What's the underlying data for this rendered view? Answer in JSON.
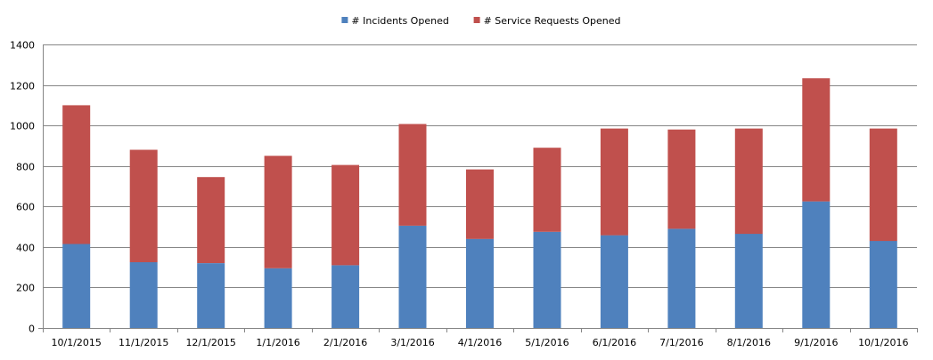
{
  "chart_data": {
    "type": "bar",
    "stacked": true,
    "categories": [
      "10/1/2015",
      "11/1/2015",
      "12/1/2015",
      "1/1/2016",
      "2/1/2016",
      "3/1/2016",
      "4/1/2016",
      "5/1/2016",
      "6/1/2016",
      "7/1/2016",
      "8/1/2016",
      "9/1/2016",
      "10/1/2016"
    ],
    "series": [
      {
        "name": "# Incidents Opened",
        "color": "#4f81bd",
        "values": [
          415,
          325,
          320,
          295,
          310,
          505,
          440,
          475,
          458,
          490,
          465,
          625,
          430
        ]
      },
      {
        "name": "# Service Requests Opened",
        "color": "#c0504d",
        "values": [
          685,
          555,
          425,
          555,
          495,
          502,
          343,
          415,
          527,
          490,
          520,
          608,
          555
        ]
      }
    ],
    "title": "",
    "xlabel": "",
    "ylabel": "",
    "ylim": [
      0,
      1400
    ],
    "yticks": [
      "0",
      "200",
      "400",
      "600",
      "800",
      "1000",
      "1200",
      "1400"
    ],
    "grid": "horizontal",
    "legend_position": "top"
  }
}
